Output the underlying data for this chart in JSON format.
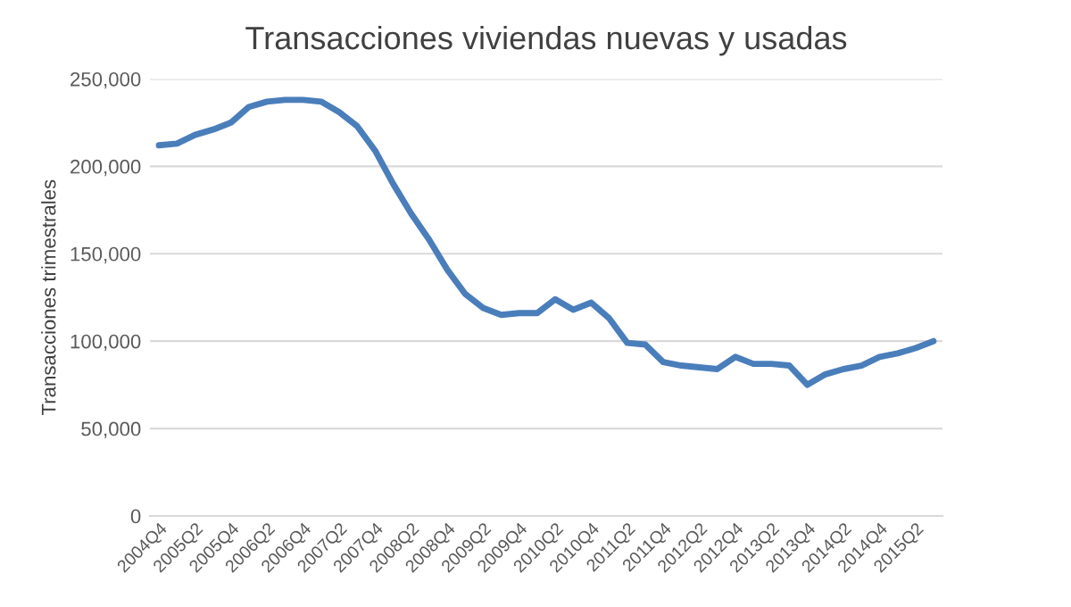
{
  "chart_data": {
    "type": "line",
    "title": "Transacciones viviendas nuevas y usadas",
    "ylabel": "Transacciones trimestrales",
    "categories": [
      "2004Q4",
      null,
      "2005Q2",
      null,
      "2005Q4",
      null,
      "2006Q2",
      null,
      "2006Q4",
      null,
      "2007Q2",
      null,
      "2007Q4",
      null,
      "2008Q2",
      null,
      "2008Q4",
      null,
      "2009Q2",
      null,
      "2009Q4",
      null,
      "2010Q2",
      null,
      "2010Q4",
      null,
      "2011Q2",
      null,
      "2011Q4",
      null,
      "2012Q2",
      null,
      "2012Q4",
      null,
      "2013Q2",
      null,
      "2013Q4",
      null,
      "2014Q2",
      null,
      "2014Q4",
      null,
      "2015Q2",
      null
    ],
    "series": [
      {
        "color": "#4a7ebb",
        "values": [
          212000,
          213000,
          218000,
          221000,
          225000,
          234000,
          237000,
          238000,
          238000,
          237000,
          231000,
          223000,
          209000,
          190000,
          173000,
          158000,
          141000,
          127000,
          119000,
          115000,
          116000,
          116000,
          124000,
          118000,
          122000,
          113000,
          99000,
          98000,
          88000,
          86000,
          85000,
          84000,
          91000,
          87000,
          87000,
          86000,
          75000,
          81000,
          84000,
          86000,
          91000,
          93000,
          96000,
          100000
        ]
      }
    ],
    "ylim": [
      0,
      250000
    ],
    "yticks": [
      {
        "value": 0,
        "label": "0"
      },
      {
        "value": 50000,
        "label": "50,000"
      },
      {
        "value": 100000,
        "label": "100,000"
      },
      {
        "value": 150000,
        "label": "150,000"
      },
      {
        "value": 200000,
        "label": "200,000"
      },
      {
        "value": 250000,
        "label": "250,000"
      }
    ],
    "grid": "y",
    "legend": false
  }
}
